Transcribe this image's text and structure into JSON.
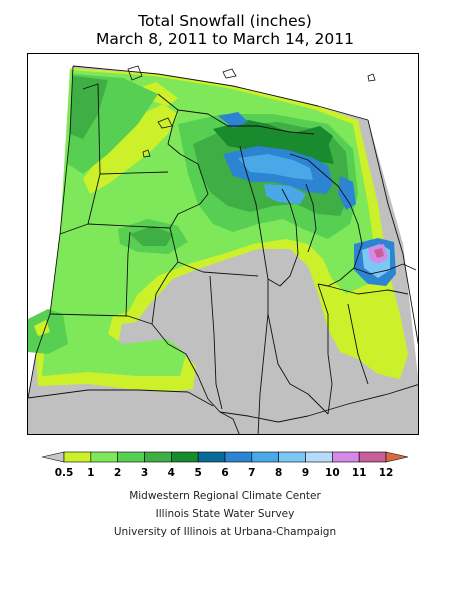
{
  "title": {
    "line1": "Total Snowfall (inches)",
    "line2": "March 8, 2011 to March 14, 2011"
  },
  "legend": {
    "labels": [
      "0.5",
      "1",
      "2",
      "3",
      "4",
      "5",
      "6",
      "7",
      "8",
      "9",
      "10",
      "11",
      "12"
    ],
    "colors": [
      "#c8c8c8",
      "#ccf02a",
      "#7ee85a",
      "#56cf52",
      "#3fae45",
      "#1a8a2e",
      "#0a6a9a",
      "#2c84d2",
      "#4aa8e8",
      "#7cc8f4",
      "#b7dcfa",
      "#d48ae6",
      "#c7609a",
      "#d86a40"
    ]
  },
  "credits": {
    "line1": "Midwestern Regional Climate Center",
    "line2": "Illinois State Water Survey",
    "line3": "University of Illinois at Urbana-Champaign"
  }
}
